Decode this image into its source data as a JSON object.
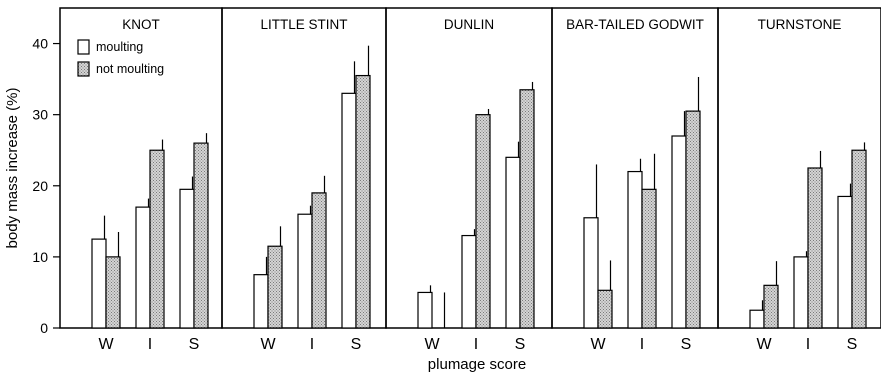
{
  "chart_data": {
    "type": "bar",
    "ylabel": "body mass increase (%)",
    "xlabel": "plumage score",
    "ylim": [
      0,
      45
    ],
    "yticks": [
      0,
      10,
      20,
      30,
      40
    ],
    "categories": [
      "W",
      "I",
      "S"
    ],
    "legend": {
      "placement": "top-left",
      "entries": [
        "moulting",
        "not moulting"
      ]
    },
    "colors": {
      "moulting": "#ffffff",
      "not_moulting": "#c8c8c8",
      "ink": "#000000"
    },
    "panels": [
      {
        "title": "KNOT",
        "series": [
          {
            "name": "moulting",
            "values": [
              12.5,
              17,
              19.5
            ],
            "errors": [
              3.3,
              1.2,
              1.8
            ]
          },
          {
            "name": "not moulting",
            "values": [
              10,
              25,
              26
            ],
            "errors": [
              3.5,
              1.5,
              1.4
            ]
          }
        ]
      },
      {
        "title": "LITTLE STINT",
        "series": [
          {
            "name": "moulting",
            "values": [
              7.5,
              16,
              33
            ],
            "errors": [
              2.5,
              1.2,
              4.5
            ]
          },
          {
            "name": "not moulting",
            "values": [
              11.5,
              19,
              35.5
            ],
            "errors": [
              2.8,
              2.4,
              4.2
            ]
          }
        ]
      },
      {
        "title": "DUNLIN",
        "series": [
          {
            "name": "moulting",
            "values": [
              5,
              13,
              24
            ],
            "errors": [
              1,
              0.9,
              2.2
            ]
          },
          {
            "name": "not moulting",
            "values": [
              0,
              30,
              33.5
            ],
            "errors": [
              5,
              0.8,
              1.1
            ]
          }
        ]
      },
      {
        "title": "BAR-TAILED GODWIT",
        "series": [
          {
            "name": "moulting",
            "values": [
              15.5,
              22,
              27
            ],
            "errors": [
              7.5,
              1.8,
              3.5
            ]
          },
          {
            "name": "not moulting",
            "values": [
              5.3,
              19.5,
              30.5
            ],
            "errors": [
              4.2,
              5,
              4.8
            ]
          }
        ]
      },
      {
        "title": "TURNSTONE",
        "series": [
          {
            "name": "moulting",
            "values": [
              2.5,
              10,
              18.5
            ],
            "errors": [
              1.4,
              0.8,
              1.8
            ]
          },
          {
            "name": "not moulting",
            "values": [
              6,
              22.5,
              25
            ],
            "errors": [
              3.4,
              2.4,
              1.1
            ]
          }
        ]
      }
    ]
  }
}
